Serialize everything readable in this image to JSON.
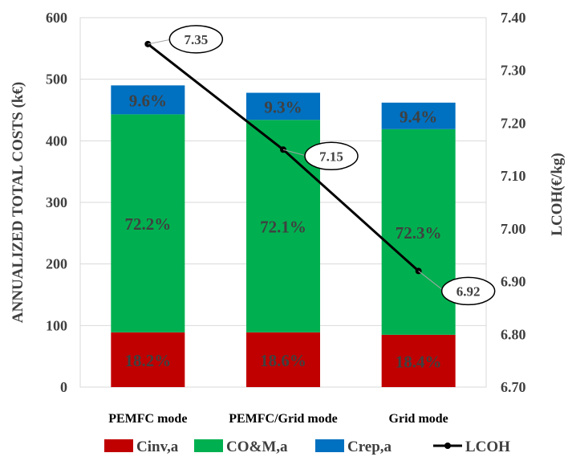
{
  "chart_data": {
    "type": "bar",
    "stacked": true,
    "categories": [
      "PEMFC mode",
      "PEMFC/Grid mode",
      "Grid mode"
    ],
    "series": [
      {
        "name": "Cinv,a",
        "values": [
          89,
          89,
          85
        ],
        "labels": [
          "18.2%",
          "18.6%",
          "18.4%"
        ],
        "color": "#C00000"
      },
      {
        "name": "CO&M,a",
        "values": [
          354,
          345,
          334
        ],
        "labels": [
          "72.2%",
          "72.1%",
          "72.3%"
        ],
        "color": "#00B050"
      },
      {
        "name": "Crep,a",
        "values": [
          47,
          44,
          43
        ],
        "labels": [
          "9.6%",
          "9.3%",
          "9.4%"
        ],
        "color": "#0070C0"
      }
    ],
    "line": {
      "name": "LCOH",
      "values": [
        7.35,
        7.15,
        6.92
      ],
      "labels": [
        "7.35",
        "7.15",
        "6.92"
      ],
      "color": "#000000"
    },
    "ylabel": "ANNUALIZED TOTAL COSTS (k€)",
    "y2label": "LCOH(€/kg)",
    "ylim": [
      0,
      600
    ],
    "y2lim": [
      6.7,
      7.4
    ],
    "yticks": [
      "0",
      "100",
      "200",
      "300",
      "400",
      "500",
      "600"
    ],
    "y2ticks": [
      "6.70",
      "6.80",
      "6.90",
      "7.00",
      "7.10",
      "7.20",
      "7.30",
      "7.40"
    ],
    "grid": true,
    "legend": "bottom",
    "label_color": "#404040"
  }
}
